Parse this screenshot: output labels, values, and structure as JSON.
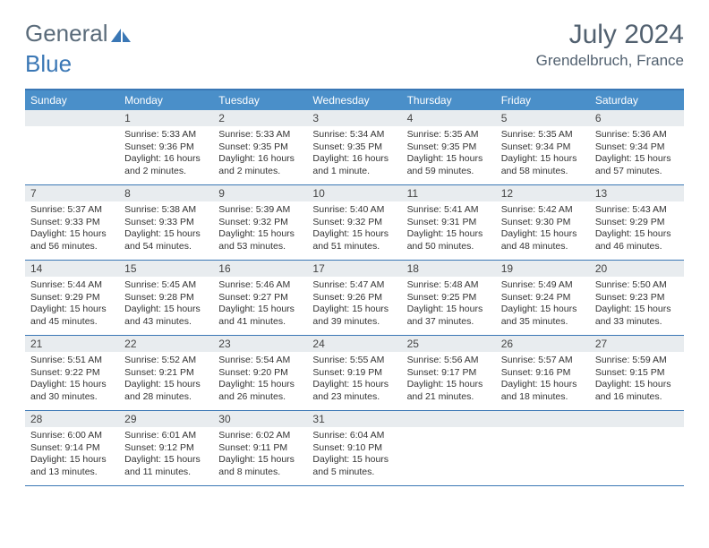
{
  "logo": {
    "part1": "General",
    "part2": "Blue"
  },
  "title": {
    "month": "July 2024",
    "location": "Grendelbruch, France"
  },
  "dayNames": [
    "Sunday",
    "Monday",
    "Tuesday",
    "Wednesday",
    "Thursday",
    "Friday",
    "Saturday"
  ],
  "colors": {
    "header_bar": "#4a8fc9",
    "accent": "#3a77b5",
    "date_bg": "#e8ecef",
    "text": "#333333",
    "muted": "#526170"
  },
  "weeks": [
    [
      {
        "date": "",
        "sunrise": "",
        "sunset": "",
        "daylight1": "",
        "daylight2": ""
      },
      {
        "date": "1",
        "sunrise": "Sunrise: 5:33 AM",
        "sunset": "Sunset: 9:36 PM",
        "daylight1": "Daylight: 16 hours",
        "daylight2": "and 2 minutes."
      },
      {
        "date": "2",
        "sunrise": "Sunrise: 5:33 AM",
        "sunset": "Sunset: 9:35 PM",
        "daylight1": "Daylight: 16 hours",
        "daylight2": "and 2 minutes."
      },
      {
        "date": "3",
        "sunrise": "Sunrise: 5:34 AM",
        "sunset": "Sunset: 9:35 PM",
        "daylight1": "Daylight: 16 hours",
        "daylight2": "and 1 minute."
      },
      {
        "date": "4",
        "sunrise": "Sunrise: 5:35 AM",
        "sunset": "Sunset: 9:35 PM",
        "daylight1": "Daylight: 15 hours",
        "daylight2": "and 59 minutes."
      },
      {
        "date": "5",
        "sunrise": "Sunrise: 5:35 AM",
        "sunset": "Sunset: 9:34 PM",
        "daylight1": "Daylight: 15 hours",
        "daylight2": "and 58 minutes."
      },
      {
        "date": "6",
        "sunrise": "Sunrise: 5:36 AM",
        "sunset": "Sunset: 9:34 PM",
        "daylight1": "Daylight: 15 hours",
        "daylight2": "and 57 minutes."
      }
    ],
    [
      {
        "date": "7",
        "sunrise": "Sunrise: 5:37 AM",
        "sunset": "Sunset: 9:33 PM",
        "daylight1": "Daylight: 15 hours",
        "daylight2": "and 56 minutes."
      },
      {
        "date": "8",
        "sunrise": "Sunrise: 5:38 AM",
        "sunset": "Sunset: 9:33 PM",
        "daylight1": "Daylight: 15 hours",
        "daylight2": "and 54 minutes."
      },
      {
        "date": "9",
        "sunrise": "Sunrise: 5:39 AM",
        "sunset": "Sunset: 9:32 PM",
        "daylight1": "Daylight: 15 hours",
        "daylight2": "and 53 minutes."
      },
      {
        "date": "10",
        "sunrise": "Sunrise: 5:40 AM",
        "sunset": "Sunset: 9:32 PM",
        "daylight1": "Daylight: 15 hours",
        "daylight2": "and 51 minutes."
      },
      {
        "date": "11",
        "sunrise": "Sunrise: 5:41 AM",
        "sunset": "Sunset: 9:31 PM",
        "daylight1": "Daylight: 15 hours",
        "daylight2": "and 50 minutes."
      },
      {
        "date": "12",
        "sunrise": "Sunrise: 5:42 AM",
        "sunset": "Sunset: 9:30 PM",
        "daylight1": "Daylight: 15 hours",
        "daylight2": "and 48 minutes."
      },
      {
        "date": "13",
        "sunrise": "Sunrise: 5:43 AM",
        "sunset": "Sunset: 9:29 PM",
        "daylight1": "Daylight: 15 hours",
        "daylight2": "and 46 minutes."
      }
    ],
    [
      {
        "date": "14",
        "sunrise": "Sunrise: 5:44 AM",
        "sunset": "Sunset: 9:29 PM",
        "daylight1": "Daylight: 15 hours",
        "daylight2": "and 45 minutes."
      },
      {
        "date": "15",
        "sunrise": "Sunrise: 5:45 AM",
        "sunset": "Sunset: 9:28 PM",
        "daylight1": "Daylight: 15 hours",
        "daylight2": "and 43 minutes."
      },
      {
        "date": "16",
        "sunrise": "Sunrise: 5:46 AM",
        "sunset": "Sunset: 9:27 PM",
        "daylight1": "Daylight: 15 hours",
        "daylight2": "and 41 minutes."
      },
      {
        "date": "17",
        "sunrise": "Sunrise: 5:47 AM",
        "sunset": "Sunset: 9:26 PM",
        "daylight1": "Daylight: 15 hours",
        "daylight2": "and 39 minutes."
      },
      {
        "date": "18",
        "sunrise": "Sunrise: 5:48 AM",
        "sunset": "Sunset: 9:25 PM",
        "daylight1": "Daylight: 15 hours",
        "daylight2": "and 37 minutes."
      },
      {
        "date": "19",
        "sunrise": "Sunrise: 5:49 AM",
        "sunset": "Sunset: 9:24 PM",
        "daylight1": "Daylight: 15 hours",
        "daylight2": "and 35 minutes."
      },
      {
        "date": "20",
        "sunrise": "Sunrise: 5:50 AM",
        "sunset": "Sunset: 9:23 PM",
        "daylight1": "Daylight: 15 hours",
        "daylight2": "and 33 minutes."
      }
    ],
    [
      {
        "date": "21",
        "sunrise": "Sunrise: 5:51 AM",
        "sunset": "Sunset: 9:22 PM",
        "daylight1": "Daylight: 15 hours",
        "daylight2": "and 30 minutes."
      },
      {
        "date": "22",
        "sunrise": "Sunrise: 5:52 AM",
        "sunset": "Sunset: 9:21 PM",
        "daylight1": "Daylight: 15 hours",
        "daylight2": "and 28 minutes."
      },
      {
        "date": "23",
        "sunrise": "Sunrise: 5:54 AM",
        "sunset": "Sunset: 9:20 PM",
        "daylight1": "Daylight: 15 hours",
        "daylight2": "and 26 minutes."
      },
      {
        "date": "24",
        "sunrise": "Sunrise: 5:55 AM",
        "sunset": "Sunset: 9:19 PM",
        "daylight1": "Daylight: 15 hours",
        "daylight2": "and 23 minutes."
      },
      {
        "date": "25",
        "sunrise": "Sunrise: 5:56 AM",
        "sunset": "Sunset: 9:17 PM",
        "daylight1": "Daylight: 15 hours",
        "daylight2": "and 21 minutes."
      },
      {
        "date": "26",
        "sunrise": "Sunrise: 5:57 AM",
        "sunset": "Sunset: 9:16 PM",
        "daylight1": "Daylight: 15 hours",
        "daylight2": "and 18 minutes."
      },
      {
        "date": "27",
        "sunrise": "Sunrise: 5:59 AM",
        "sunset": "Sunset: 9:15 PM",
        "daylight1": "Daylight: 15 hours",
        "daylight2": "and 16 minutes."
      }
    ],
    [
      {
        "date": "28",
        "sunrise": "Sunrise: 6:00 AM",
        "sunset": "Sunset: 9:14 PM",
        "daylight1": "Daylight: 15 hours",
        "daylight2": "and 13 minutes."
      },
      {
        "date": "29",
        "sunrise": "Sunrise: 6:01 AM",
        "sunset": "Sunset: 9:12 PM",
        "daylight1": "Daylight: 15 hours",
        "daylight2": "and 11 minutes."
      },
      {
        "date": "30",
        "sunrise": "Sunrise: 6:02 AM",
        "sunset": "Sunset: 9:11 PM",
        "daylight1": "Daylight: 15 hours",
        "daylight2": "and 8 minutes."
      },
      {
        "date": "31",
        "sunrise": "Sunrise: 6:04 AM",
        "sunset": "Sunset: 9:10 PM",
        "daylight1": "Daylight: 15 hours",
        "daylight2": "and 5 minutes."
      },
      {
        "date": "",
        "sunrise": "",
        "sunset": "",
        "daylight1": "",
        "daylight2": ""
      },
      {
        "date": "",
        "sunrise": "",
        "sunset": "",
        "daylight1": "",
        "daylight2": ""
      },
      {
        "date": "",
        "sunrise": "",
        "sunset": "",
        "daylight1": "",
        "daylight2": ""
      }
    ]
  ]
}
